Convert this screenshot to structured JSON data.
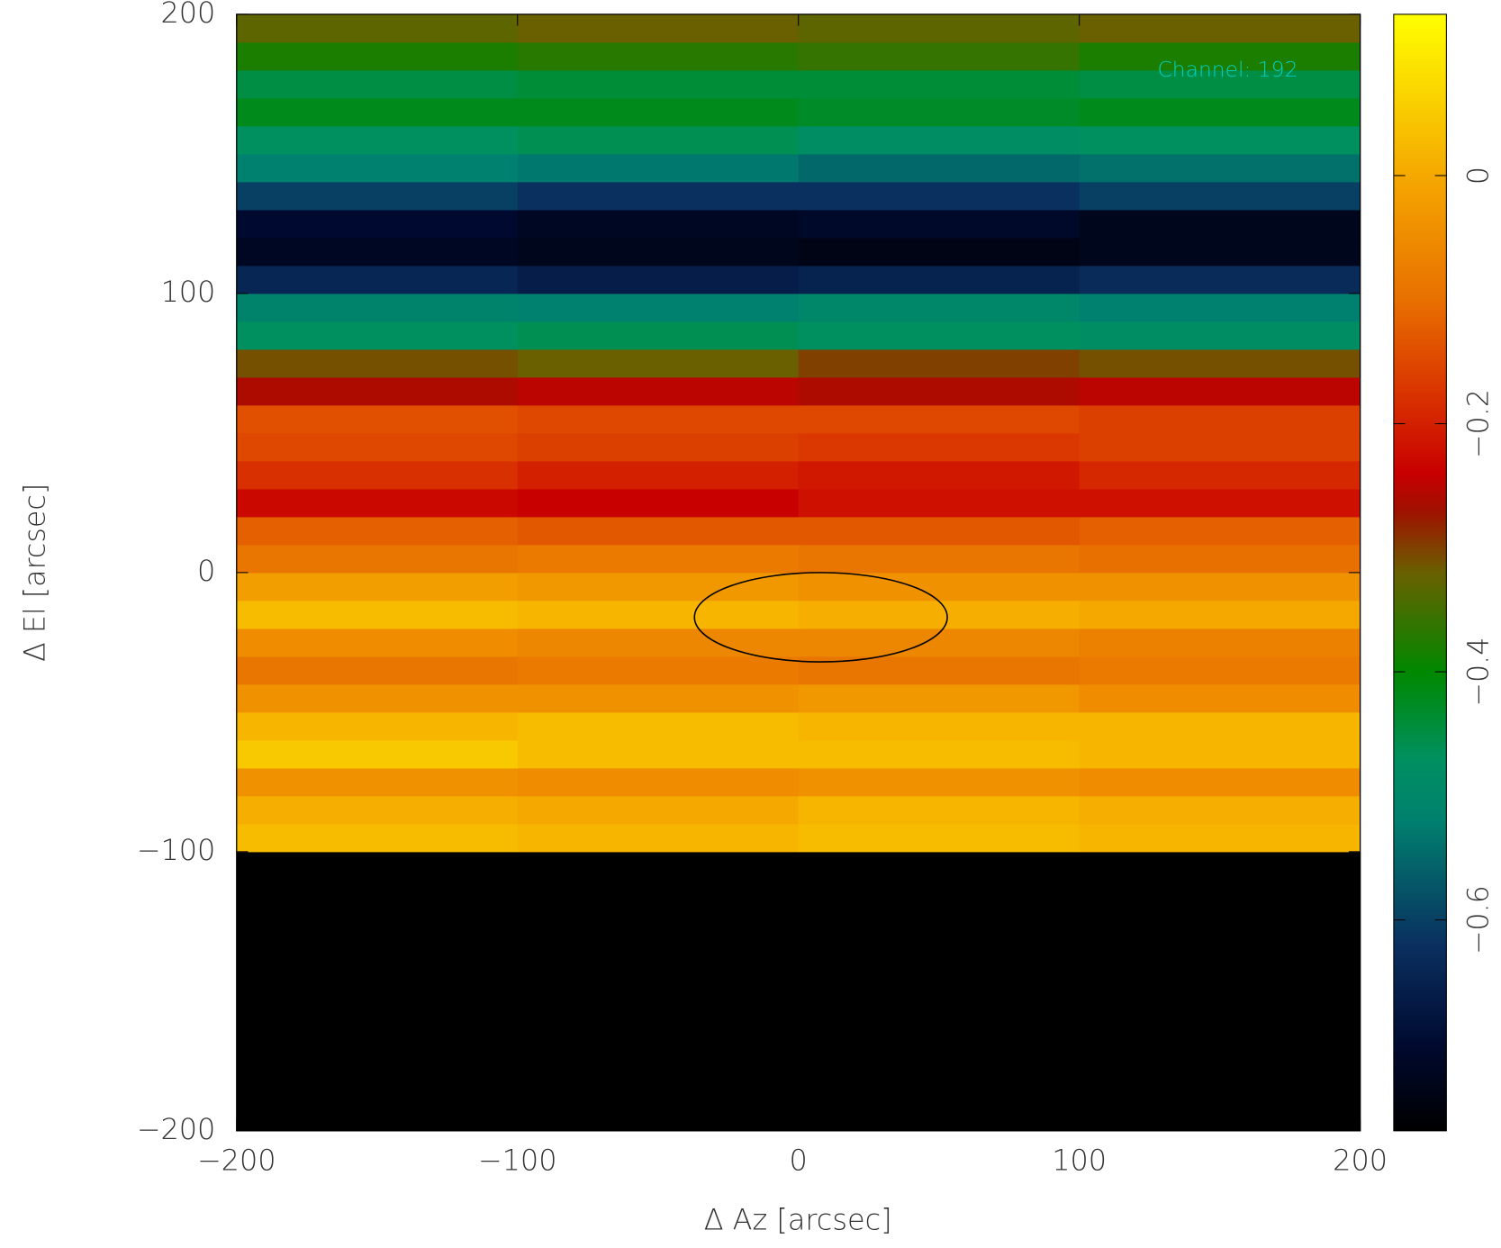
{
  "chart_data": {
    "type": "heatmap",
    "xlabel": "Δ Az [arcsec]",
    "ylabel": "Δ El [arcsec]",
    "annotation": "Channel: 192",
    "annotation_color": "#00d0c8",
    "xbins": [
      -200,
      -100,
      0,
      100,
      200
    ],
    "ybins": [
      -200,
      -100,
      -90,
      -80,
      -70,
      -60,
      -50,
      -40,
      -30,
      -20,
      -10,
      0,
      10,
      20,
      30,
      40,
      50,
      60,
      70,
      80,
      90,
      100,
      110,
      120,
      130,
      140,
      150,
      160,
      170,
      180,
      190,
      200
    ],
    "z": [
      [
        -0.77,
        -0.77,
        -0.77,
        -0.77
      ],
      [
        0.03,
        0.02,
        0.03,
        0.02
      ],
      [
        0.01,
        0.0,
        0.02,
        0.01
      ],
      [
        -0.04,
        -0.05,
        -0.04,
        -0.05
      ],
      [
        0.05,
        0.03,
        0.03,
        0.02
      ],
      [
        0.02,
        0.03,
        0.02,
        0.02
      ],
      [
        -0.04,
        -0.04,
        -0.03,
        -0.05
      ],
      [
        -0.09,
        -0.08,
        -0.09,
        -0.08
      ],
      [
        -0.05,
        -0.06,
        -0.06,
        -0.07
      ],
      [
        0.03,
        0.02,
        0.01,
        0.0
      ],
      [
        -0.02,
        -0.03,
        -0.04,
        -0.04
      ],
      [
        -0.09,
        -0.08,
        -0.09,
        -0.1
      ],
      [
        -0.12,
        -0.13,
        -0.13,
        -0.12
      ],
      [
        -0.23,
        -0.24,
        -0.22,
        -0.22
      ],
      [
        -0.18,
        -0.2,
        -0.21,
        -0.19
      ],
      [
        -0.15,
        -0.16,
        -0.17,
        -0.16
      ],
      [
        -0.14,
        -0.15,
        -0.15,
        -0.16
      ],
      [
        -0.26,
        -0.25,
        -0.26,
        -0.25
      ],
      [
        -0.31,
        -0.32,
        -0.3,
        -0.31
      ],
      [
        -0.47,
        -0.46,
        -0.47,
        -0.48
      ],
      [
        -0.51,
        -0.52,
        -0.5,
        -0.52
      ],
      [
        -0.64,
        -0.66,
        -0.65,
        -0.63
      ],
      [
        -0.72,
        -0.73,
        -0.74,
        -0.73
      ],
      [
        -0.7,
        -0.72,
        -0.71,
        -0.73
      ],
      [
        -0.6,
        -0.62,
        -0.62,
        -0.6
      ],
      [
        -0.52,
        -0.53,
        -0.55,
        -0.54
      ],
      [
        -0.47,
        -0.46,
        -0.48,
        -0.47
      ],
      [
        -0.42,
        -0.42,
        -0.43,
        -0.42
      ],
      [
        -0.45,
        -0.44,
        -0.44,
        -0.45
      ],
      [
        -0.38,
        -0.37,
        -0.36,
        -0.38
      ],
      [
        -0.33,
        -0.32,
        -0.33,
        -0.32
      ]
    ],
    "xlim": [
      -200,
      200
    ],
    "ylim": [
      -200,
      200
    ],
    "xticks": [
      {
        "value": -200,
        "label": "−200"
      },
      {
        "value": -100,
        "label": "−100"
      },
      0,
      100,
      200
    ],
    "yticks": [
      {
        "value": -200,
        "label": "−200"
      },
      {
        "value": -100,
        "label": "−100"
      },
      0,
      100,
      200
    ],
    "zlim": [
      -0.77,
      0.13
    ],
    "zticks": [
      {
        "value": -0.6,
        "label": "−0.6"
      },
      {
        "value": -0.4,
        "label": "−0.4"
      },
      {
        "value": -0.2,
        "label": "−0.2"
      },
      0
    ],
    "colorscale": [
      [
        -0.77,
        "#000000"
      ],
      [
        -0.7,
        "#000a30"
      ],
      [
        -0.62,
        "#0a3060"
      ],
      [
        -0.52,
        "#00806e"
      ],
      [
        -0.47,
        "#009060"
      ],
      [
        -0.4,
        "#008800"
      ],
      [
        -0.32,
        "#6a6000"
      ],
      [
        -0.27,
        "#a01000"
      ],
      [
        -0.24,
        "#c80000"
      ],
      [
        -0.18,
        "#d83000"
      ],
      [
        -0.1,
        "#e87000"
      ],
      [
        0,
        "#f5a800"
      ],
      [
        0.13,
        "#ffff00"
      ]
    ],
    "beam": {
      "x": 8,
      "y": -16,
      "width": 90,
      "height": 32,
      "color": "#000000"
    }
  }
}
